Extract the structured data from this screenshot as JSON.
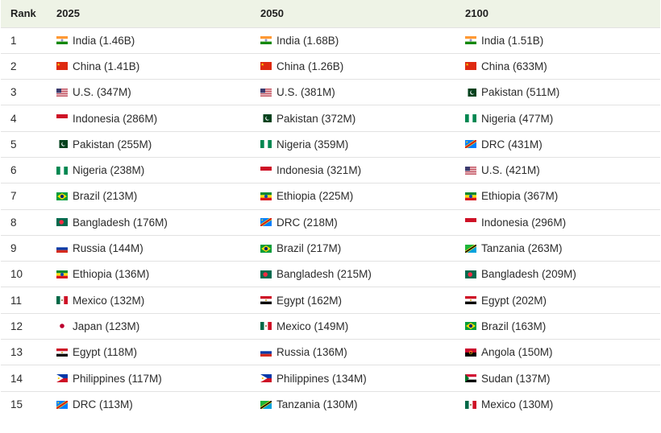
{
  "header": {
    "rank": "Rank",
    "y2025": "2025",
    "y2050": "2050",
    "y2100": "2100"
  },
  "rows": [
    {
      "rank": "1",
      "c2025": {
        "text": "India (1.46B)",
        "flag": "india-flag-icon"
      },
      "c2050": {
        "text": "India (1.68B)",
        "flag": "india-flag-icon"
      },
      "c2100": {
        "text": "India (1.51B)",
        "flag": "india-flag-icon"
      }
    },
    {
      "rank": "2",
      "c2025": {
        "text": "China (1.41B)",
        "flag": "china-flag-icon"
      },
      "c2050": {
        "text": "China (1.26B)",
        "flag": "china-flag-icon"
      },
      "c2100": {
        "text": "China (633M)",
        "flag": "china-flag-icon"
      }
    },
    {
      "rank": "3",
      "c2025": {
        "text": "U.S. (347M)",
        "flag": "us-flag-icon"
      },
      "c2050": {
        "text": "U.S. (381M)",
        "flag": "us-flag-icon"
      },
      "c2100": {
        "text": "Pakistan (511M)",
        "flag": "pakistan-flag-icon"
      }
    },
    {
      "rank": "4",
      "c2025": {
        "text": "Indonesia (286M)",
        "flag": "indonesia-flag-icon"
      },
      "c2050": {
        "text": "Pakistan (372M)",
        "flag": "pakistan-flag-icon"
      },
      "c2100": {
        "text": "Nigeria (477M)",
        "flag": "nigeria-flag-icon"
      }
    },
    {
      "rank": "5",
      "c2025": {
        "text": "Pakistan (255M)",
        "flag": "pakistan-flag-icon"
      },
      "c2050": {
        "text": "Nigeria (359M)",
        "flag": "nigeria-flag-icon"
      },
      "c2100": {
        "text": "DRC (431M)",
        "flag": "drc-flag-icon"
      }
    },
    {
      "rank": "6",
      "c2025": {
        "text": "Nigeria (238M)",
        "flag": "nigeria-flag-icon"
      },
      "c2050": {
        "text": "Indonesia (321M)",
        "flag": "indonesia-flag-icon"
      },
      "c2100": {
        "text": "U.S. (421M)",
        "flag": "us-flag-icon"
      }
    },
    {
      "rank": "7",
      "c2025": {
        "text": "Brazil (213M)",
        "flag": "brazil-flag-icon"
      },
      "c2050": {
        "text": "Ethiopia (225M)",
        "flag": "ethiopia-flag-icon"
      },
      "c2100": {
        "text": "Ethiopia (367M)",
        "flag": "ethiopia-flag-icon"
      }
    },
    {
      "rank": "8",
      "c2025": {
        "text": "Bangladesh (176M)",
        "flag": "bangladesh-flag-icon"
      },
      "c2050": {
        "text": "DRC (218M)",
        "flag": "drc-flag-icon"
      },
      "c2100": {
        "text": "Indonesia (296M)",
        "flag": "indonesia-flag-icon"
      }
    },
    {
      "rank": "9",
      "c2025": {
        "text": "Russia (144M)",
        "flag": "russia-flag-icon"
      },
      "c2050": {
        "text": "Brazil (217M)",
        "flag": "brazil-flag-icon"
      },
      "c2100": {
        "text": "Tanzania (263M)",
        "flag": "tanzania-flag-icon"
      }
    },
    {
      "rank": "10",
      "c2025": {
        "text": "Ethiopia (136M)",
        "flag": "ethiopia-flag-icon"
      },
      "c2050": {
        "text": "Bangladesh (215M)",
        "flag": "bangladesh-flag-icon"
      },
      "c2100": {
        "text": "Bangladesh (209M)",
        "flag": "bangladesh-flag-icon"
      }
    },
    {
      "rank": "11",
      "c2025": {
        "text": "Mexico (132M)",
        "flag": "mexico-flag-icon"
      },
      "c2050": {
        "text": "Egypt (162M)",
        "flag": "egypt-flag-icon"
      },
      "c2100": {
        "text": "Egypt (202M)",
        "flag": "egypt-flag-icon"
      }
    },
    {
      "rank": "12",
      "c2025": {
        "text": "Japan (123M)",
        "flag": "japan-flag-icon"
      },
      "c2050": {
        "text": "Mexico (149M)",
        "flag": "mexico-flag-icon"
      },
      "c2100": {
        "text": "Brazil (163M)",
        "flag": "brazil-flag-icon"
      }
    },
    {
      "rank": "13",
      "c2025": {
        "text": "Egypt (118M)",
        "flag": "egypt-flag-icon"
      },
      "c2050": {
        "text": "Russia (136M)",
        "flag": "russia-flag-icon"
      },
      "c2100": {
        "text": "Angola (150M)",
        "flag": "angola-flag-icon"
      }
    },
    {
      "rank": "14",
      "c2025": {
        "text": "Philippines (117M)",
        "flag": "philippines-flag-icon"
      },
      "c2050": {
        "text": "Philippines (134M)",
        "flag": "philippines-flag-icon"
      },
      "c2100": {
        "text": "Sudan (137M)",
        "flag": "sudan-flag-icon"
      }
    },
    {
      "rank": "15",
      "c2025": {
        "text": "DRC (113M)",
        "flag": "drc-flag-icon"
      },
      "c2050": {
        "text": "Tanzania (130M)",
        "flag": "tanzania-flag-icon"
      },
      "c2100": {
        "text": "Mexico (130M)",
        "flag": "mexico-flag-icon"
      }
    }
  ]
}
